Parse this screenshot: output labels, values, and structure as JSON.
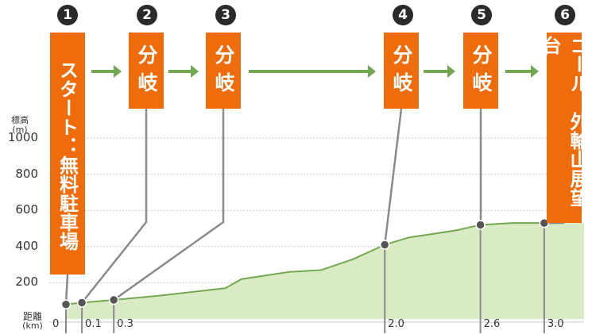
{
  "chart_data": {
    "type": "area",
    "y_axis": {
      "title": "標高",
      "unit": "(m)",
      "ticks": [
        1000,
        800,
        600,
        400,
        200
      ],
      "range": [
        0,
        1100
      ]
    },
    "x_axis": {
      "title": "距離",
      "unit": "(km)",
      "ticks": [
        "0",
        "0.1",
        "0.3",
        "2.0",
        "2.6",
        "3.0"
      ],
      "range": [
        0,
        3.25
      ]
    },
    "profile": {
      "x": [
        0,
        0.1,
        0.3,
        0.6,
        1.0,
        1.1,
        1.4,
        1.6,
        1.8,
        2.0,
        2.15,
        2.3,
        2.45,
        2.6,
        2.8,
        3.0
      ],
      "y": [
        80,
        90,
        105,
        130,
        170,
        220,
        260,
        270,
        330,
        410,
        450,
        470,
        490,
        520,
        530,
        530
      ]
    },
    "waypoints": [
      {
        "num": "1",
        "label": "スタート：無料駐車場",
        "x": 0,
        "elev": 80
      },
      {
        "num": "2",
        "label": "分岐",
        "x": 0.1,
        "elev": 90
      },
      {
        "num": "3",
        "label": "分岐",
        "x": 0.3,
        "elev": 105
      },
      {
        "num": "4",
        "label": "分岐",
        "x": 2.0,
        "elev": 410
      },
      {
        "num": "5",
        "label": "分岐",
        "x": 2.6,
        "elev": 520
      },
      {
        "num": "6",
        "label": "ゴール：外輪山展望台",
        "x": 3.0,
        "elev": 530
      }
    ],
    "colors": {
      "label_bg": "#ef6c0d",
      "area_fill": "#d8ebc4",
      "profile_line": "#72a850",
      "arrow": "#72a850",
      "leader": "#8a8a8a",
      "grid": "#c9c9c9"
    }
  }
}
